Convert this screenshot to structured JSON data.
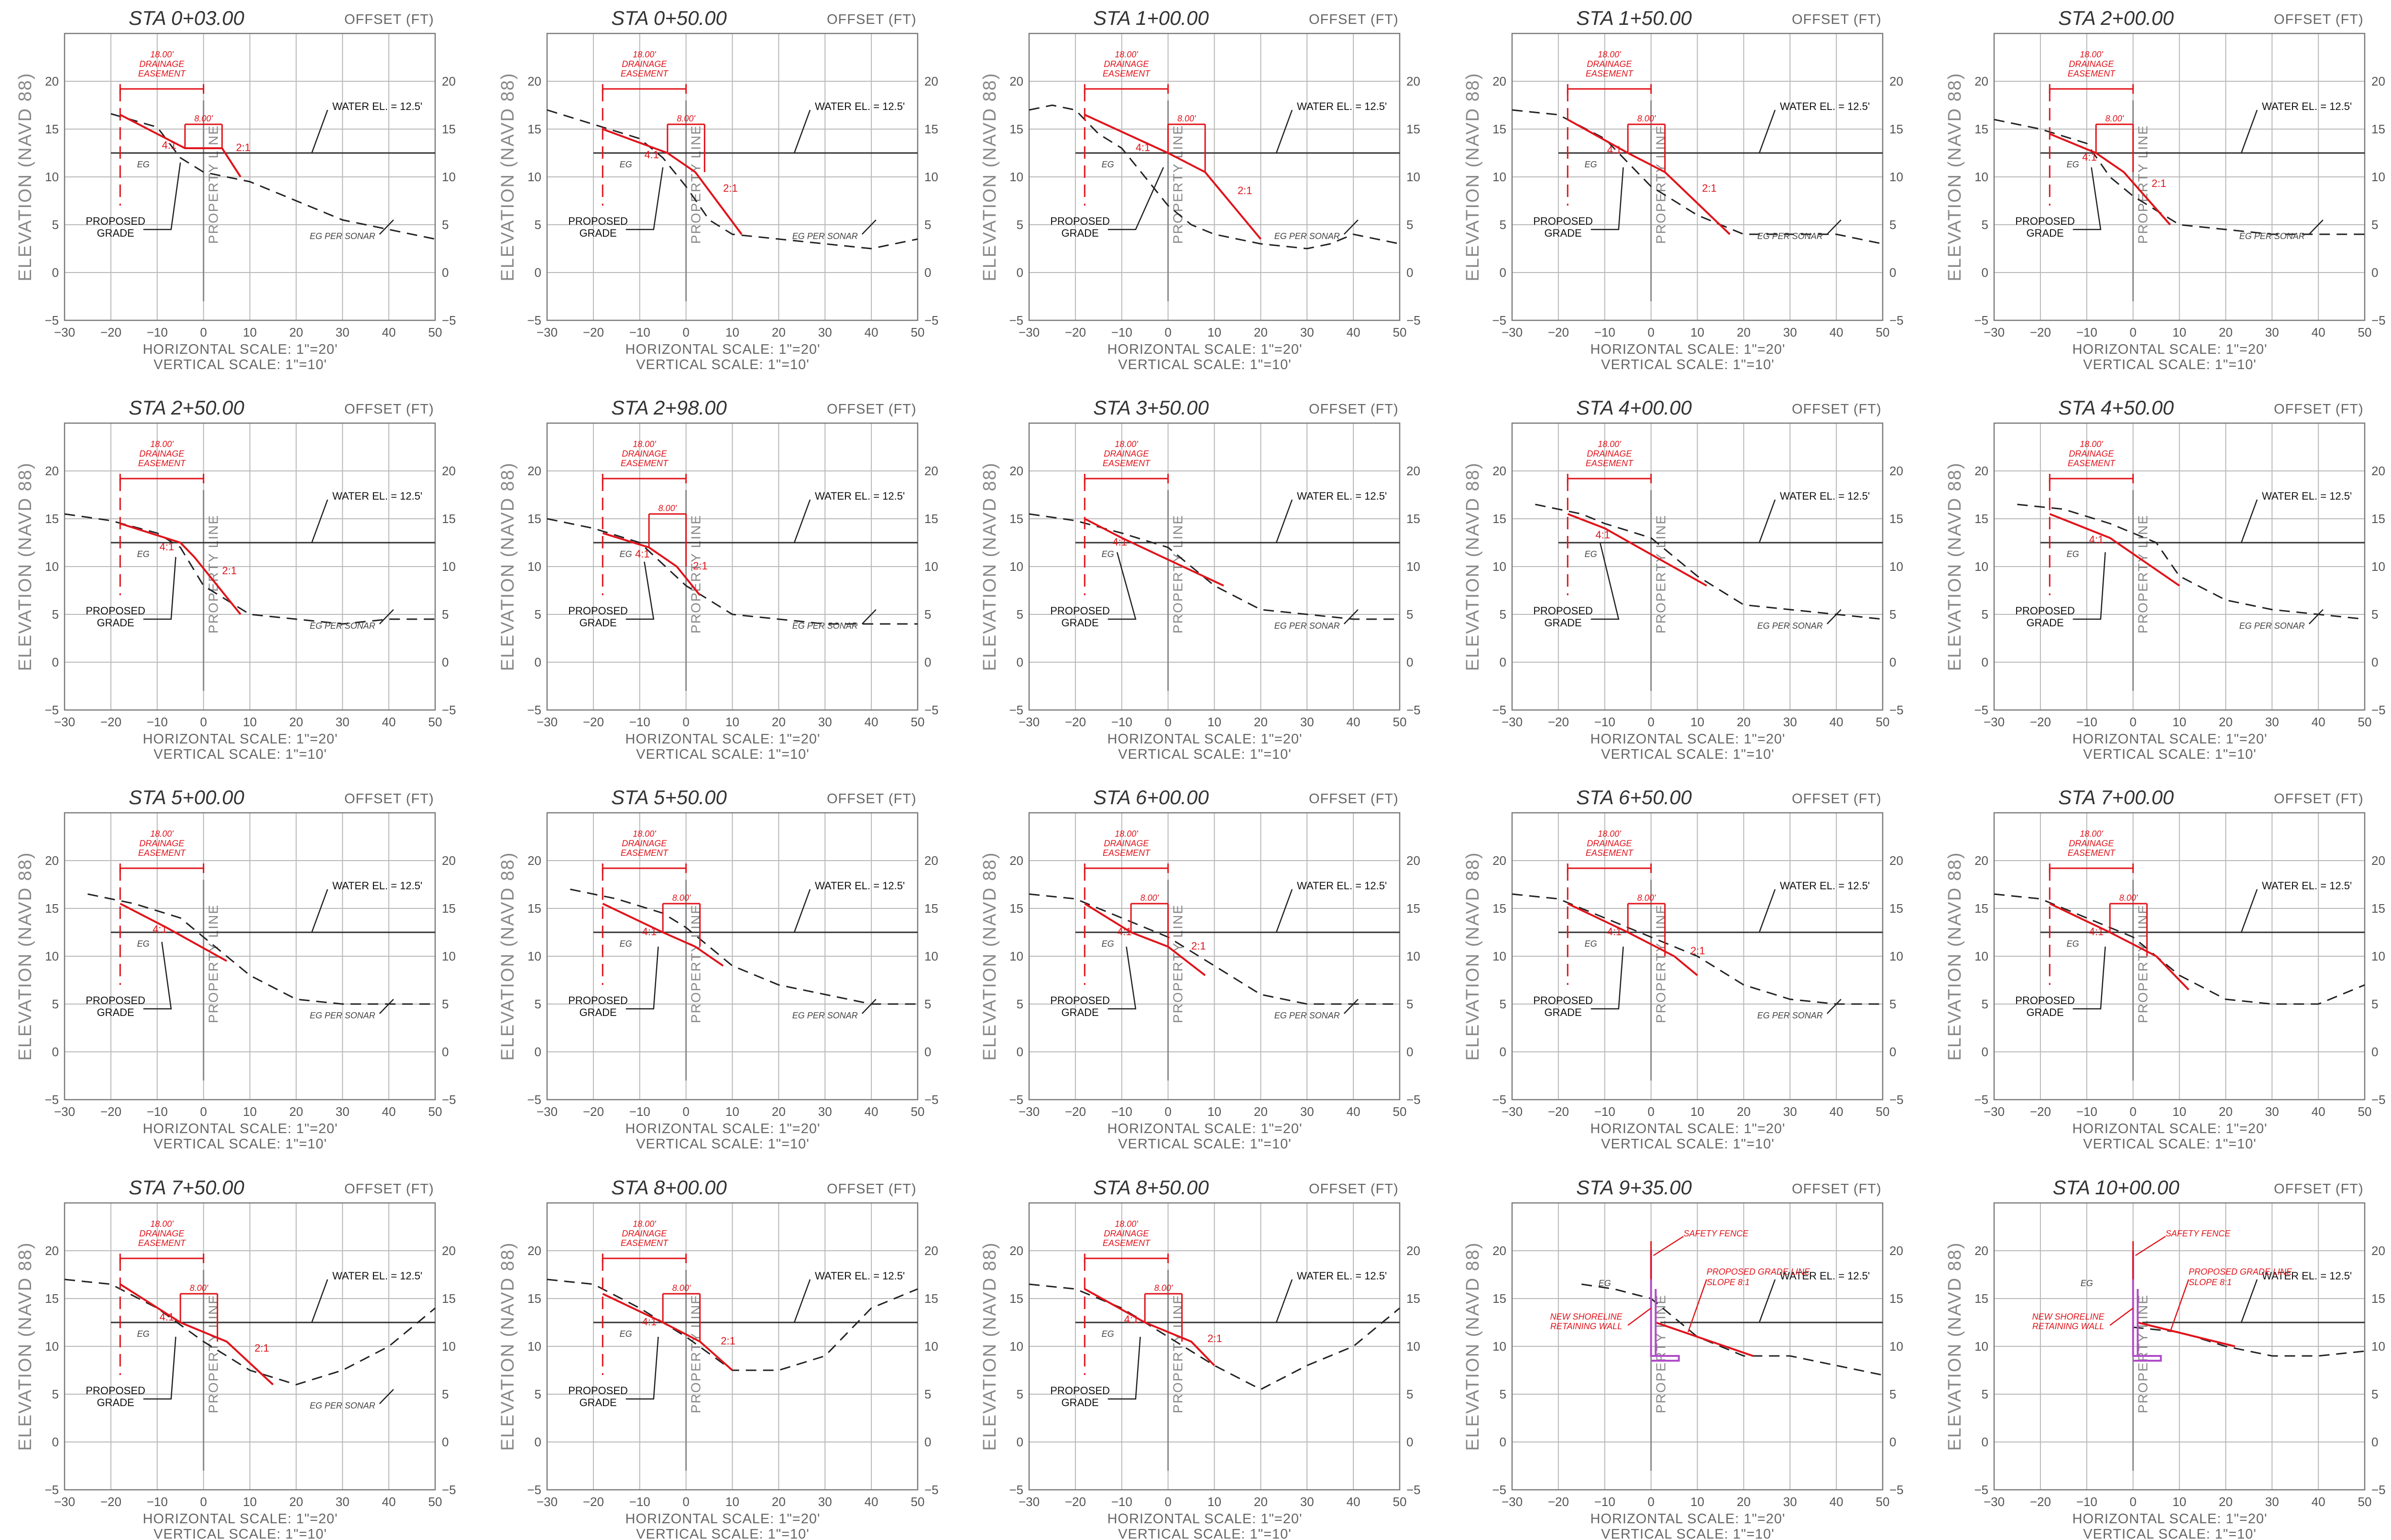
{
  "common": {
    "offset_label": "OFFSET (FT)",
    "y_axis_label": "ELEVATION (NAVD 88)",
    "h_scale": "HORIZONTAL SCALE:  1\"=20'",
    "v_scale": "VERTICAL SCALE:  1\"=10'",
    "water_label": "WATER EL. = 12.5'",
    "water_el": 12.5,
    "proposed_grade_label": [
      "PROPOSED",
      "GRADE"
    ],
    "property_line_label": "PROPERTY LINE",
    "eg_label": "EG",
    "eg_sonar_label": "EG PER SONAR",
    "easement_label": [
      "18.00'",
      "DRAINAGE",
      "EASEMENT"
    ],
    "bench_label": "8.00'",
    "x_ticks": [
      -30,
      -20,
      -10,
      0,
      10,
      20,
      30,
      40,
      50
    ],
    "y_ticks": [
      -5,
      0,
      5,
      10,
      15,
      20
    ],
    "x_range": [
      -30,
      50
    ],
    "y_range": [
      -5,
      25
    ],
    "colors": {
      "proposed": "#e0141b",
      "existing": "#222222",
      "wall": "#b04cc8",
      "grid": "#b9b9b9"
    }
  },
  "sections": [
    {
      "title": "STA 0+03.00",
      "sonar": true,
      "bench": true,
      "wall": false,
      "eg": [
        [
          -20,
          16.6
        ],
        [
          -10,
          15.2
        ],
        [
          -5,
          12
        ],
        [
          0,
          10.5
        ],
        [
          10,
          9.5
        ],
        [
          20,
          7.5
        ],
        [
          30,
          5.5
        ],
        [
          40,
          4.5
        ],
        [
          50,
          3.5
        ]
      ],
      "proposed": [
        [
          -18,
          16.5
        ],
        [
          -4,
          13
        ],
        [
          4,
          13
        ],
        [
          8,
          10
        ]
      ],
      "slopes": [
        "4:1",
        "2:1"
      ]
    },
    {
      "title": "STA 0+50.00",
      "sonar": true,
      "bench": true,
      "wall": false,
      "eg": [
        [
          -30,
          17
        ],
        [
          -20,
          15.5
        ],
        [
          -10,
          14
        ],
        [
          -5,
          12
        ],
        [
          0,
          9
        ],
        [
          5,
          5.5
        ],
        [
          10,
          4
        ],
        [
          20,
          3.5
        ],
        [
          30,
          3
        ],
        [
          40,
          2.5
        ],
        [
          45,
          3
        ],
        [
          50,
          3.5
        ]
      ],
      "proposed": [
        [
          -18,
          15
        ],
        [
          -4,
          12.5
        ],
        [
          2,
          10.5
        ],
        [
          12,
          4
        ]
      ],
      "slopes": [
        "4:1",
        "2:1"
      ]
    },
    {
      "title": "STA 1+00.00",
      "sonar": true,
      "bench": true,
      "wall": false,
      "eg": [
        [
          -30,
          17
        ],
        [
          -25,
          17.5
        ],
        [
          -20,
          17
        ],
        [
          -15,
          14.5
        ],
        [
          -10,
          13
        ],
        [
          -5,
          10
        ],
        [
          0,
          7
        ],
        [
          5,
          5
        ],
        [
          10,
          4
        ],
        [
          20,
          3
        ],
        [
          30,
          2.5
        ],
        [
          35,
          3
        ],
        [
          40,
          4
        ],
        [
          50,
          3
        ]
      ],
      "proposed": [
        [
          -18,
          16.5
        ],
        [
          0,
          12.5
        ],
        [
          8,
          10.5
        ],
        [
          20,
          3.5
        ]
      ],
      "slopes": [
        "4:1",
        "2:1"
      ]
    },
    {
      "title": "STA 1+50.00",
      "sonar": true,
      "bench": true,
      "wall": false,
      "eg": [
        [
          -30,
          17
        ],
        [
          -20,
          16.5
        ],
        [
          -10,
          14
        ],
        [
          0,
          9
        ],
        [
          10,
          6
        ],
        [
          20,
          4
        ],
        [
          30,
          4
        ],
        [
          40,
          4
        ],
        [
          50,
          3
        ]
      ],
      "proposed": [
        [
          -18,
          16
        ],
        [
          -5,
          12.5
        ],
        [
          3,
          10.5
        ],
        [
          17,
          4
        ]
      ],
      "slopes": [
        "4:1",
        "2:1"
      ]
    },
    {
      "title": "STA 2+00.00",
      "sonar": true,
      "bench": true,
      "wall": false,
      "eg": [
        [
          -30,
          16
        ],
        [
          -20,
          15
        ],
        [
          -10,
          13.5
        ],
        [
          -5,
          10
        ],
        [
          0,
          8
        ],
        [
          10,
          5
        ],
        [
          20,
          4.5
        ],
        [
          30,
          4
        ],
        [
          40,
          4
        ],
        [
          50,
          4
        ]
      ],
      "proposed": [
        [
          -18,
          14.5
        ],
        [
          -8,
          12.5
        ],
        [
          -2,
          10.5
        ],
        [
          8,
          5
        ]
      ],
      "slopes": [
        "4:1",
        "2:1"
      ]
    },
    {
      "title": "STA 2+50.00",
      "sonar": true,
      "bench": false,
      "wall": false,
      "eg": [
        [
          -30,
          15.5
        ],
        [
          -20,
          14.8
        ],
        [
          -10,
          13.5
        ],
        [
          -5,
          12
        ],
        [
          0,
          8
        ],
        [
          10,
          5
        ],
        [
          20,
          4.5
        ],
        [
          30,
          4
        ],
        [
          40,
          4.5
        ],
        [
          50,
          4.5
        ]
      ],
      "proposed": [
        [
          -18,
          14.5
        ],
        [
          -5,
          12.5
        ],
        [
          -2,
          11
        ],
        [
          8,
          5
        ]
      ],
      "slopes": [
        "4:1",
        "2:1"
      ]
    },
    {
      "title": "STA 2+98.00",
      "sonar": true,
      "bench": true,
      "wall": false,
      "eg": [
        [
          -30,
          15
        ],
        [
          -20,
          14
        ],
        [
          -10,
          12.5
        ],
        [
          0,
          8
        ],
        [
          10,
          5
        ],
        [
          20,
          4.5
        ],
        [
          30,
          4
        ],
        [
          40,
          4
        ],
        [
          50,
          4
        ]
      ],
      "proposed": [
        [
          -18,
          13.5
        ],
        [
          -8,
          12
        ],
        [
          -2,
          10
        ],
        [
          3,
          7
        ]
      ],
      "slopes": [
        "4:1",
        "2:1"
      ]
    },
    {
      "title": "STA 3+50.00",
      "sonar": true,
      "bench": false,
      "wall": false,
      "eg": [
        [
          -30,
          15.5
        ],
        [
          -20,
          14.8
        ],
        [
          -10,
          13.5
        ],
        [
          0,
          12
        ],
        [
          10,
          8
        ],
        [
          20,
          5.5
        ],
        [
          30,
          5
        ],
        [
          40,
          4.5
        ],
        [
          50,
          4.5
        ]
      ],
      "proposed": [
        [
          -18,
          15
        ],
        [
          -10,
          13
        ],
        [
          12,
          8
        ]
      ],
      "slopes": [
        "4:1"
      ]
    },
    {
      "title": "STA 4+00.00",
      "sonar": true,
      "bench": false,
      "wall": false,
      "eg": [
        [
          -25,
          16.5
        ],
        [
          -15,
          15.5
        ],
        [
          -10,
          14.5
        ],
        [
          0,
          13
        ],
        [
          10,
          9
        ],
        [
          20,
          6
        ],
        [
          30,
          5.5
        ],
        [
          40,
          5
        ],
        [
          50,
          4.5
        ]
      ],
      "proposed": [
        [
          -18,
          15.5
        ],
        [
          -10,
          14
        ],
        [
          12,
          8
        ]
      ],
      "slopes": [
        "4:1"
      ]
    },
    {
      "title": "STA 4+50.00",
      "sonar": true,
      "bench": false,
      "wall": false,
      "eg": [
        [
          -25,
          16.5
        ],
        [
          -15,
          16
        ],
        [
          -5,
          14.5
        ],
        [
          5,
          12.5
        ],
        [
          10,
          9
        ],
        [
          20,
          6.5
        ],
        [
          30,
          5.5
        ],
        [
          40,
          5
        ],
        [
          50,
          4.5
        ]
      ],
      "proposed": [
        [
          -18,
          15.5
        ],
        [
          -5,
          13
        ],
        [
          10,
          8
        ]
      ],
      "slopes": [
        "4:1"
      ]
    },
    {
      "title": "STA 5+00.00",
      "sonar": true,
      "bench": false,
      "wall": false,
      "eg": [
        [
          -25,
          16.5
        ],
        [
          -15,
          15.5
        ],
        [
          -5,
          14
        ],
        [
          0,
          12
        ],
        [
          10,
          8
        ],
        [
          20,
          5.5
        ],
        [
          30,
          5
        ],
        [
          40,
          5
        ],
        [
          50,
          5
        ]
      ],
      "proposed": [
        [
          -18,
          15.5
        ],
        [
          -8,
          13
        ],
        [
          5,
          9.5
        ]
      ],
      "slopes": [
        "4:1"
      ]
    },
    {
      "title": "STA 5+50.00",
      "sonar": true,
      "bench": true,
      "wall": false,
      "eg": [
        [
          -25,
          17
        ],
        [
          -15,
          16
        ],
        [
          -5,
          14.5
        ],
        [
          0,
          13
        ],
        [
          10,
          9
        ],
        [
          20,
          7
        ],
        [
          30,
          6
        ],
        [
          40,
          5
        ],
        [
          50,
          5
        ]
      ],
      "proposed": [
        [
          -18,
          15.5
        ],
        [
          -5,
          12.5
        ],
        [
          2,
          11
        ],
        [
          8,
          9
        ]
      ],
      "slopes": [
        "4:1"
      ]
    },
    {
      "title": "STA 6+00.00",
      "sonar": true,
      "bench": true,
      "wall": false,
      "eg": [
        [
          -30,
          16.5
        ],
        [
          -20,
          16
        ],
        [
          -10,
          14
        ],
        [
          0,
          12
        ],
        [
          10,
          9
        ],
        [
          20,
          6
        ],
        [
          30,
          5
        ],
        [
          40,
          5
        ],
        [
          50,
          5
        ]
      ],
      "proposed": [
        [
          -18,
          15.5
        ],
        [
          -8,
          12.5
        ],
        [
          0,
          11
        ],
        [
          8,
          8
        ]
      ],
      "slopes": [
        "4:1",
        "2:1"
      ]
    },
    {
      "title": "STA 6+50.00",
      "sonar": true,
      "bench": true,
      "wall": false,
      "eg": [
        [
          -30,
          16.5
        ],
        [
          -20,
          16
        ],
        [
          -10,
          14
        ],
        [
          0,
          12
        ],
        [
          10,
          10
        ],
        [
          20,
          7
        ],
        [
          30,
          5.5
        ],
        [
          40,
          5
        ],
        [
          50,
          5
        ]
      ],
      "proposed": [
        [
          -18,
          15.5
        ],
        [
          -5,
          12.5
        ],
        [
          5,
          10
        ],
        [
          10,
          8
        ]
      ],
      "slopes": [
        "4:1",
        "2:1"
      ]
    },
    {
      "title": "STA 7+00.00",
      "sonar": false,
      "bench": true,
      "wall": false,
      "eg": [
        [
          -30,
          16.5
        ],
        [
          -20,
          16
        ],
        [
          -10,
          14
        ],
        [
          0,
          12
        ],
        [
          10,
          8
        ],
        [
          20,
          5.5
        ],
        [
          30,
          5
        ],
        [
          40,
          5
        ],
        [
          50,
          7
        ]
      ],
      "proposed": [
        [
          -18,
          15.5
        ],
        [
          -5,
          12.5
        ],
        [
          5,
          10
        ],
        [
          12,
          6.5
        ]
      ],
      "slopes": [
        "4:1"
      ]
    },
    {
      "title": "STA 7+50.00",
      "sonar": true,
      "bench": true,
      "wall": false,
      "eg": [
        [
          -30,
          17
        ],
        [
          -20,
          16.5
        ],
        [
          -10,
          14
        ],
        [
          0,
          10.5
        ],
        [
          10,
          7.5
        ],
        [
          20,
          6
        ],
        [
          30,
          7.5
        ],
        [
          40,
          10
        ],
        [
          50,
          14
        ]
      ],
      "proposed": [
        [
          -18,
          16.5
        ],
        [
          -5,
          12.5
        ],
        [
          5,
          10.5
        ],
        [
          15,
          6
        ]
      ],
      "slopes": [
        "4:1",
        "2:1"
      ]
    },
    {
      "title": "STA 8+00.00",
      "sonar": false,
      "bench": true,
      "wall": false,
      "eg": [
        [
          -30,
          17
        ],
        [
          -20,
          16.5
        ],
        [
          -10,
          14
        ],
        [
          0,
          11
        ],
        [
          10,
          7.5
        ],
        [
          20,
          7.5
        ],
        [
          30,
          9
        ],
        [
          40,
          14
        ],
        [
          50,
          16
        ]
      ],
      "proposed": [
        [
          -18,
          15.5
        ],
        [
          -5,
          12.5
        ],
        [
          3,
          10.5
        ],
        [
          10,
          7.5
        ]
      ],
      "slopes": [
        "4:1",
        "2:1"
      ]
    },
    {
      "title": "STA 8+50.00",
      "sonar": false,
      "bench": true,
      "wall": false,
      "eg": [
        [
          -30,
          16.5
        ],
        [
          -20,
          16
        ],
        [
          -10,
          14
        ],
        [
          0,
          11
        ],
        [
          10,
          8
        ],
        [
          20,
          5.5
        ],
        [
          30,
          8
        ],
        [
          40,
          10
        ],
        [
          50,
          14
        ]
      ],
      "proposed": [
        [
          -18,
          16
        ],
        [
          -5,
          12.5
        ],
        [
          5,
          10.5
        ],
        [
          10,
          8
        ]
      ],
      "slopes": [
        "4:1",
        "2:1"
      ]
    },
    {
      "title": "STA 9+35.00",
      "sonar": false,
      "bench": false,
      "wall": true,
      "eg": [
        [
          -15,
          16.5
        ],
        [
          -8,
          16
        ],
        [
          0,
          15
        ],
        [
          10,
          11
        ],
        [
          20,
          9
        ],
        [
          30,
          9
        ],
        [
          40,
          8
        ],
        [
          50,
          7
        ]
      ],
      "proposed": [
        [
          1,
          12.5
        ],
        [
          22,
          9
        ]
      ],
      "slopes": [],
      "wall_labels": {
        "fence": "SAFETY FENCE",
        "grade": [
          "PROPOSED GRADE LINE",
          "SLOPE 8:1"
        ],
        "wall": [
          "NEW SHORELINE",
          "RETAINING WALL"
        ]
      }
    },
    {
      "title": "STA 10+00.00",
      "sonar": false,
      "bench": false,
      "wall": true,
      "eg": [
        [
          0,
          12
        ],
        [
          10,
          11.5
        ],
        [
          20,
          10
        ],
        [
          30,
          9
        ],
        [
          40,
          9
        ],
        [
          50,
          9.5
        ]
      ],
      "proposed": [
        [
          1,
          12.5
        ],
        [
          22,
          10
        ]
      ],
      "slopes": [],
      "wall_labels": {
        "fence": "SAFETY FENCE",
        "grade": [
          "PROPOSED GRADE LINE",
          "SLOPE 8:1"
        ],
        "wall": [
          "NEW SHORELINE",
          "RETAINING WALL"
        ]
      }
    }
  ]
}
